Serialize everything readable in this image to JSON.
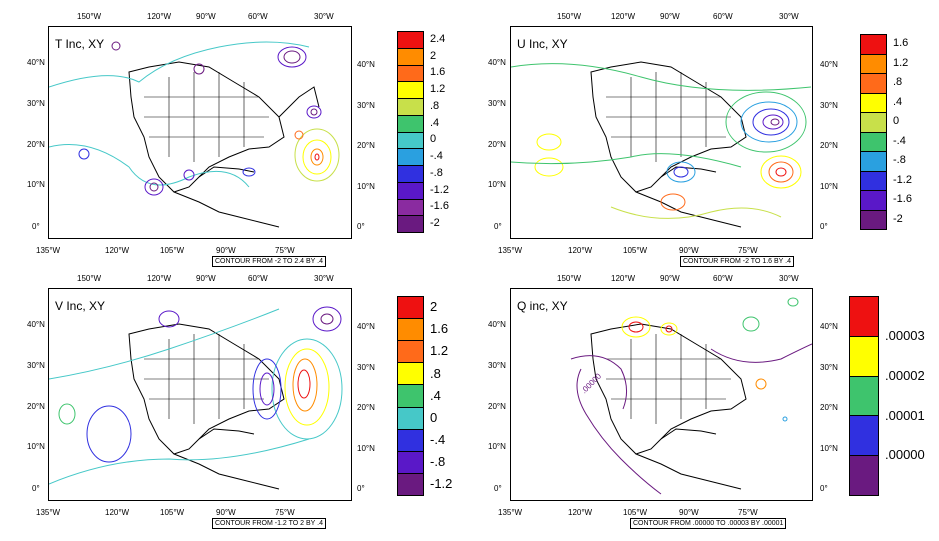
{
  "panels": [
    {
      "title": "T Inc, XY",
      "note": "CONTOUR FROM -2 TO 2.4 BY .4",
      "top_lon_labels": [
        "150°W",
        "120°W",
        "90°W",
        "60°W",
        "30°W"
      ],
      "bottom_lon_labels": [
        "135°W",
        "120°W",
        "105°W",
        "90°W",
        "75°W"
      ],
      "lat_labels": [
        "40°N",
        "30°N",
        "20°N",
        "10°N",
        "0°"
      ],
      "right_lat_labels": [
        "40°N",
        "30°N",
        "20°N",
        "10°N",
        "0°"
      ],
      "colorbar": {
        "labels": [
          "2.4",
          "2",
          "1.6",
          "1.2",
          ".8",
          ".4",
          "0",
          "-.4",
          "-.8",
          "-1.2",
          "-1.6",
          "-2"
        ],
        "colors": [
          "#ee1111",
          "#ff8c00",
          "#ff6a1a",
          "#ffff00",
          "#c8e04a",
          "#3ec46d",
          "#46c8c8",
          "#2aa0e0",
          "#3030e0",
          "#5a18c8",
          "#8a2ba0",
          "#6a1a80"
        ]
      }
    },
    {
      "title": "U Inc, XY",
      "note": "CONTOUR FROM -2 TO 1.6 BY .4",
      "top_lon_labels": [
        "150°W",
        "120°W",
        "90°W",
        "60°W",
        "30°W"
      ],
      "bottom_lon_labels": [
        "135°W",
        "120°W",
        "105°W",
        "90°W",
        "75°W"
      ],
      "lat_labels": [
        "40°N",
        "30°N",
        "20°N",
        "10°N",
        "0°"
      ],
      "right_lat_labels": [
        "40°N",
        "30°N",
        "20°N",
        "10°N",
        "0°"
      ],
      "colorbar": {
        "labels": [
          "1.6",
          "1.2",
          ".8",
          ".4",
          "0",
          "-.4",
          "-.8",
          "-1.2",
          "-1.6",
          "-2"
        ],
        "colors": [
          "#ee1111",
          "#ff8c00",
          "#ff6a1a",
          "#ffff00",
          "#c8e04a",
          "#3ec46d",
          "#2aa0e0",
          "#3030e0",
          "#5a18c8",
          "#6a1a80"
        ]
      }
    },
    {
      "title": "V Inc, XY",
      "note": "CONTOUR FROM -1.2 TO 2 BY .4",
      "top_lon_labels": [
        "150°W",
        "120°W",
        "90°W",
        "60°W",
        "30°W"
      ],
      "bottom_lon_labels": [
        "135°W",
        "120°W",
        "105°W",
        "90°W",
        "75°W"
      ],
      "lat_labels": [
        "40°N",
        "30°N",
        "20°N",
        "10°N",
        "0°"
      ],
      "right_lat_labels": [
        "40°N",
        "30°N",
        "20°N",
        "10°N",
        "0°"
      ],
      "colorbar": {
        "labels": [
          "2",
          "1.6",
          "1.2",
          ".8",
          ".4",
          "0",
          "-.4",
          "-.8",
          "-1.2"
        ],
        "colors": [
          "#ee1111",
          "#ff8c00",
          "#ff6a1a",
          "#ffff00",
          "#3ec46d",
          "#46c8c8",
          "#3030e0",
          "#5a18c8",
          "#6a1a80"
        ]
      }
    },
    {
      "title": "Q inc, XY",
      "note": "CONTOUR FROM .00000 TO .00003 BY .00001",
      "inline_label": ".00000",
      "top_lon_labels": [
        "150°W",
        "120°W",
        "90°W",
        "60°W",
        "30°W"
      ],
      "bottom_lon_labels": [
        "135°W",
        "120°W",
        "105°W",
        "90°W",
        "75°W"
      ],
      "lat_labels": [
        "40°N",
        "30°N",
        "20°N",
        "10°N",
        "0°"
      ],
      "right_lat_labels": [
        "40°N",
        "30°N",
        "20°N",
        "10°N",
        "0°"
      ],
      "colorbar": {
        "labels": [
          ".00003",
          ".00002",
          ".00001",
          ".00000"
        ],
        "colors": [
          "#ee1111",
          "#ffff00",
          "#3ec46d",
          "#3030e0",
          "#6a1a80"
        ]
      }
    }
  ]
}
